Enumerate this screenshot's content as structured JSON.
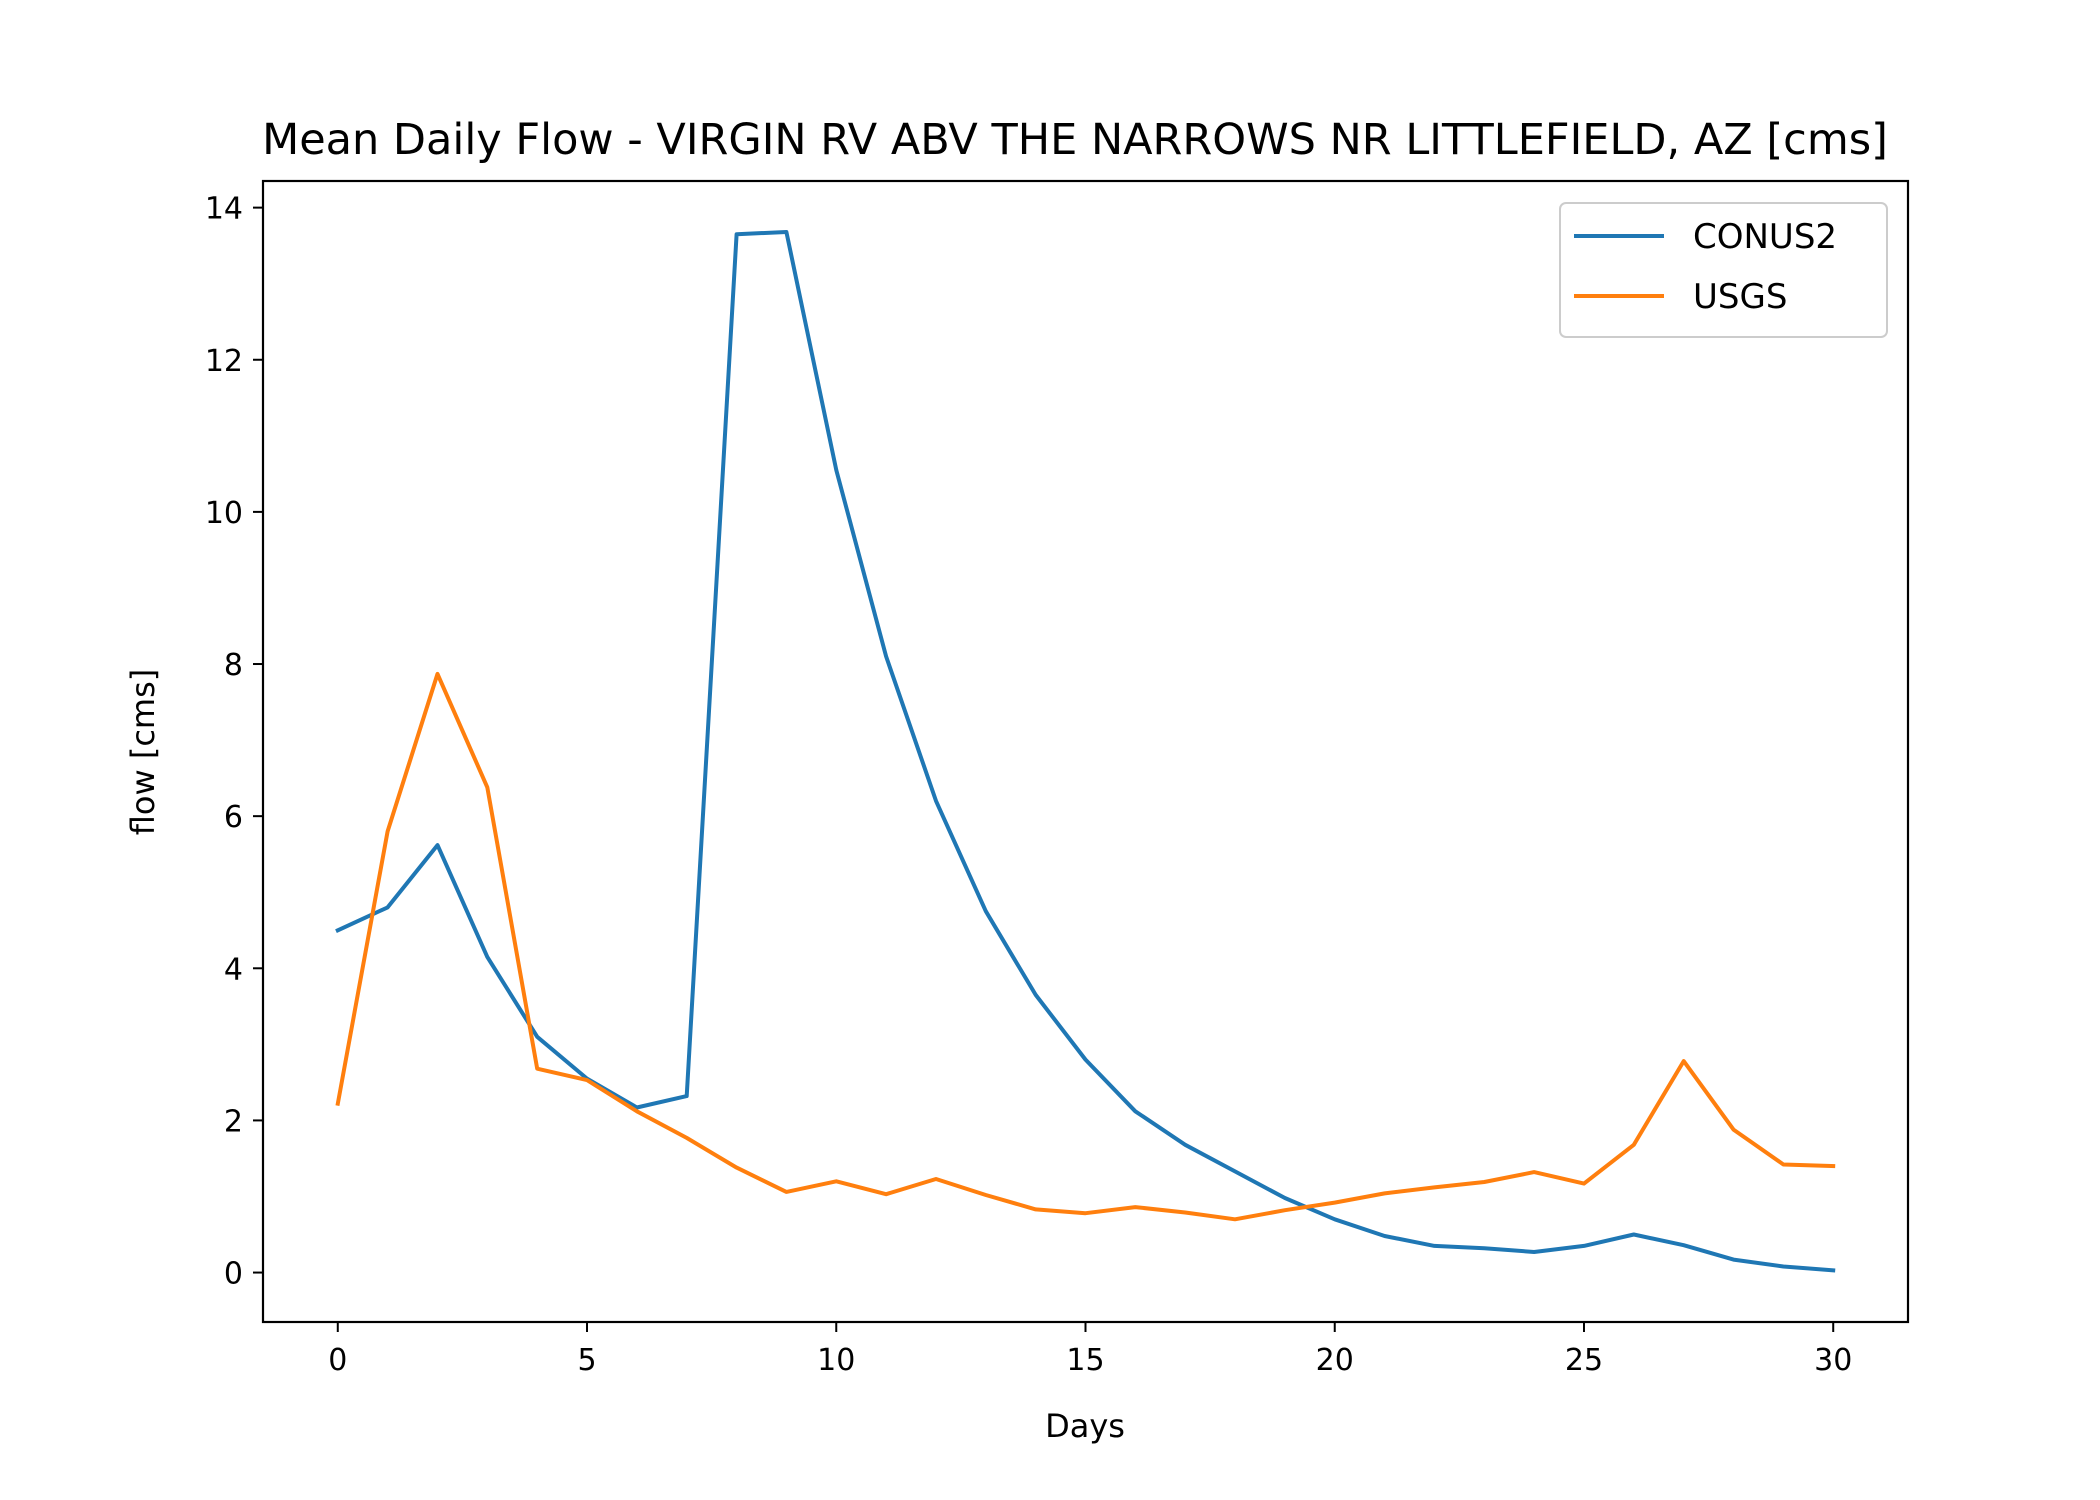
{
  "chart_data": {
    "type": "line",
    "title": "Mean Daily Flow - VIRGIN RV ABV THE NARROWS NR LITTLEFIELD, AZ [cms]",
    "xlabel": "Days",
    "ylabel": "flow [cms]",
    "xlim": [
      -1.5,
      31.5
    ],
    "ylim": [
      -0.65,
      14.35
    ],
    "xticks": [
      0,
      5,
      10,
      15,
      20,
      25,
      30
    ],
    "yticks": [
      0,
      2,
      4,
      6,
      8,
      10,
      12,
      14
    ],
    "grid": false,
    "legend_position": "top-right",
    "x": [
      0,
      1,
      2,
      3,
      4,
      5,
      6,
      7,
      8,
      9,
      10,
      11,
      12,
      13,
      14,
      15,
      16,
      17,
      18,
      19,
      20,
      21,
      22,
      23,
      24,
      25,
      26,
      27,
      28,
      29,
      30
    ],
    "series": [
      {
        "name": "CONUS2",
        "color": "#1f77b4",
        "values": [
          4.5,
          4.8,
          5.62,
          4.15,
          3.1,
          2.55,
          2.17,
          2.32,
          13.65,
          13.68,
          10.55,
          8.1,
          6.2,
          4.75,
          3.65,
          2.8,
          2.12,
          1.68,
          1.33,
          0.98,
          0.7,
          0.48,
          0.35,
          0.32,
          0.27,
          0.35,
          0.5,
          0.36,
          0.17,
          0.08,
          0.03
        ]
      },
      {
        "name": "USGS",
        "color": "#ff7f0e",
        "values": [
          2.22,
          5.8,
          7.87,
          6.38,
          2.68,
          2.53,
          2.12,
          1.77,
          1.38,
          1.06,
          1.2,
          1.03,
          1.23,
          1.02,
          0.83,
          0.78,
          0.86,
          0.79,
          0.7,
          0.82,
          0.92,
          1.04,
          1.12,
          1.19,
          1.32,
          1.17,
          1.68,
          2.78,
          1.88,
          1.42,
          1.4
        ]
      }
    ]
  }
}
